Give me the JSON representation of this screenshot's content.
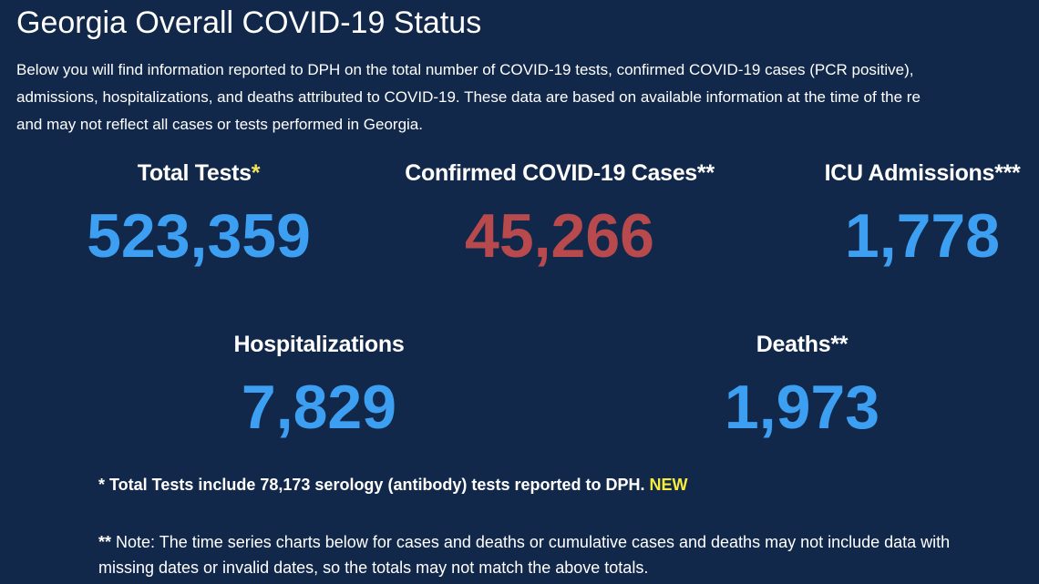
{
  "header": {
    "title": "Georgia Overall COVID-19 Status"
  },
  "intro": {
    "line1": "Below you will find information reported to DPH on the total number of COVID-19 tests, confirmed COVID-19 cases (PCR positive),",
    "line2": "admissions, hospitalizations, and deaths attributed to COVID-19. These data are based on available information at the time of the re",
    "line3": "and may not reflect all cases or tests performed in Georgia."
  },
  "stats": {
    "total_tests": {
      "label": "Total Tests",
      "marker": "*",
      "value": "523,359",
      "color": "#3c9ff2"
    },
    "confirmed_cases": {
      "label": "Confirmed COVID-19 Cases**",
      "value": "45,266",
      "color": "#b84a4e"
    },
    "icu_admissions": {
      "label": "ICU Admissions***",
      "value": "1,778",
      "color": "#3c9ff2"
    },
    "hospitalizations": {
      "label": "Hospitalizations",
      "value": "7,829",
      "color": "#3c9ff2"
    },
    "deaths": {
      "label": "Deaths**",
      "value": "1,973",
      "color": "#3c9ff2"
    }
  },
  "footnotes": {
    "tests_note": "* Total Tests include 78,173 serology (antibody) tests reported to DPH.",
    "new_tag": "NEW",
    "timeseries_prefix": "**",
    "timeseries_note": "Note: The time series charts below for cases and deaths or cumulative cases and deaths may not include data with missing dates or invalid dates, so the totals may not match the above totals."
  },
  "colors": {
    "background": "#12284a",
    "accent_blue": "#3c9ff2",
    "accent_red": "#b84a4e",
    "highlight_yellow": "#f7ec3b"
  }
}
